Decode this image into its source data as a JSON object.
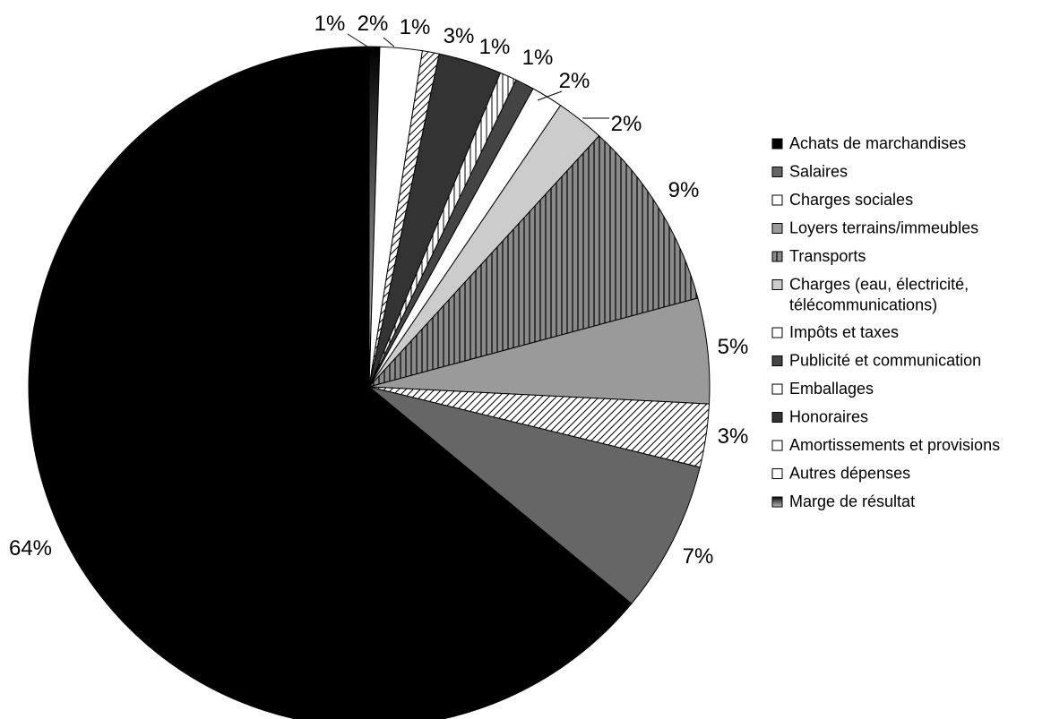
{
  "chart_data": {
    "type": "pie",
    "title": "",
    "categories": [
      "Marge de résultat",
      "Autres dépenses",
      "Amortissements et provisions",
      "Honoraires",
      "Emballages",
      "Publicité et communication",
      "Impôts et taxes",
      "Charges (eau, électricité, télécommunications)",
      "Transports",
      "Loyers terrains/immeubles",
      "Charges sociales",
      "Salaires",
      "Achats de marchandises"
    ],
    "values": [
      0.5,
      2,
      0.8,
      3,
      0.8,
      0.9,
      1.5,
      2.3,
      9,
      5,
      3,
      7.2,
      64
    ],
    "value_labels": [
      "",
      "2%",
      "1%",
      "3%",
      "1%",
      "1%",
      "2%",
      "2%",
      "9%",
      "5%",
      "3%",
      "7%",
      "64%"
    ],
    "extra_label": "1%",
    "legend": [
      {
        "label": "Achats de marchandises",
        "color": "#000000",
        "pattern": "solid"
      },
      {
        "label": "Salaires",
        "color": "#666666",
        "pattern": "solid"
      },
      {
        "label": "Charges sociales",
        "color": "#ffffff",
        "pattern": "hatch"
      },
      {
        "label": "Loyers terrains/immeubles",
        "color": "#9a9a9a",
        "pattern": "solid"
      },
      {
        "label": "Transports",
        "color": "#8a8a8a",
        "pattern": "vstripes"
      },
      {
        "label_lines": [
          "Charges (eau, électricité,",
          "télécommunications)"
        ],
        "color": "#cccccc",
        "pattern": "solid"
      },
      {
        "label": "Impôts et taxes",
        "color": "#ffffff",
        "pattern": "solid"
      },
      {
        "label": "Publicité et communication",
        "color": "#444444",
        "pattern": "solid"
      },
      {
        "label": "Emballages",
        "color": "#ffffff",
        "pattern": "vstripes"
      },
      {
        "label": "Honoraires",
        "color": "#333333",
        "pattern": "solid"
      },
      {
        "label": "Amortissements et provisions",
        "color": "#ffffff",
        "pattern": "hatch"
      },
      {
        "label": "Autres dépenses",
        "color": "#ffffff",
        "pattern": "solid"
      },
      {
        "label": "Marge de résultat",
        "color": "#222222",
        "pattern": "gradient"
      }
    ],
    "legend_position": "right"
  }
}
